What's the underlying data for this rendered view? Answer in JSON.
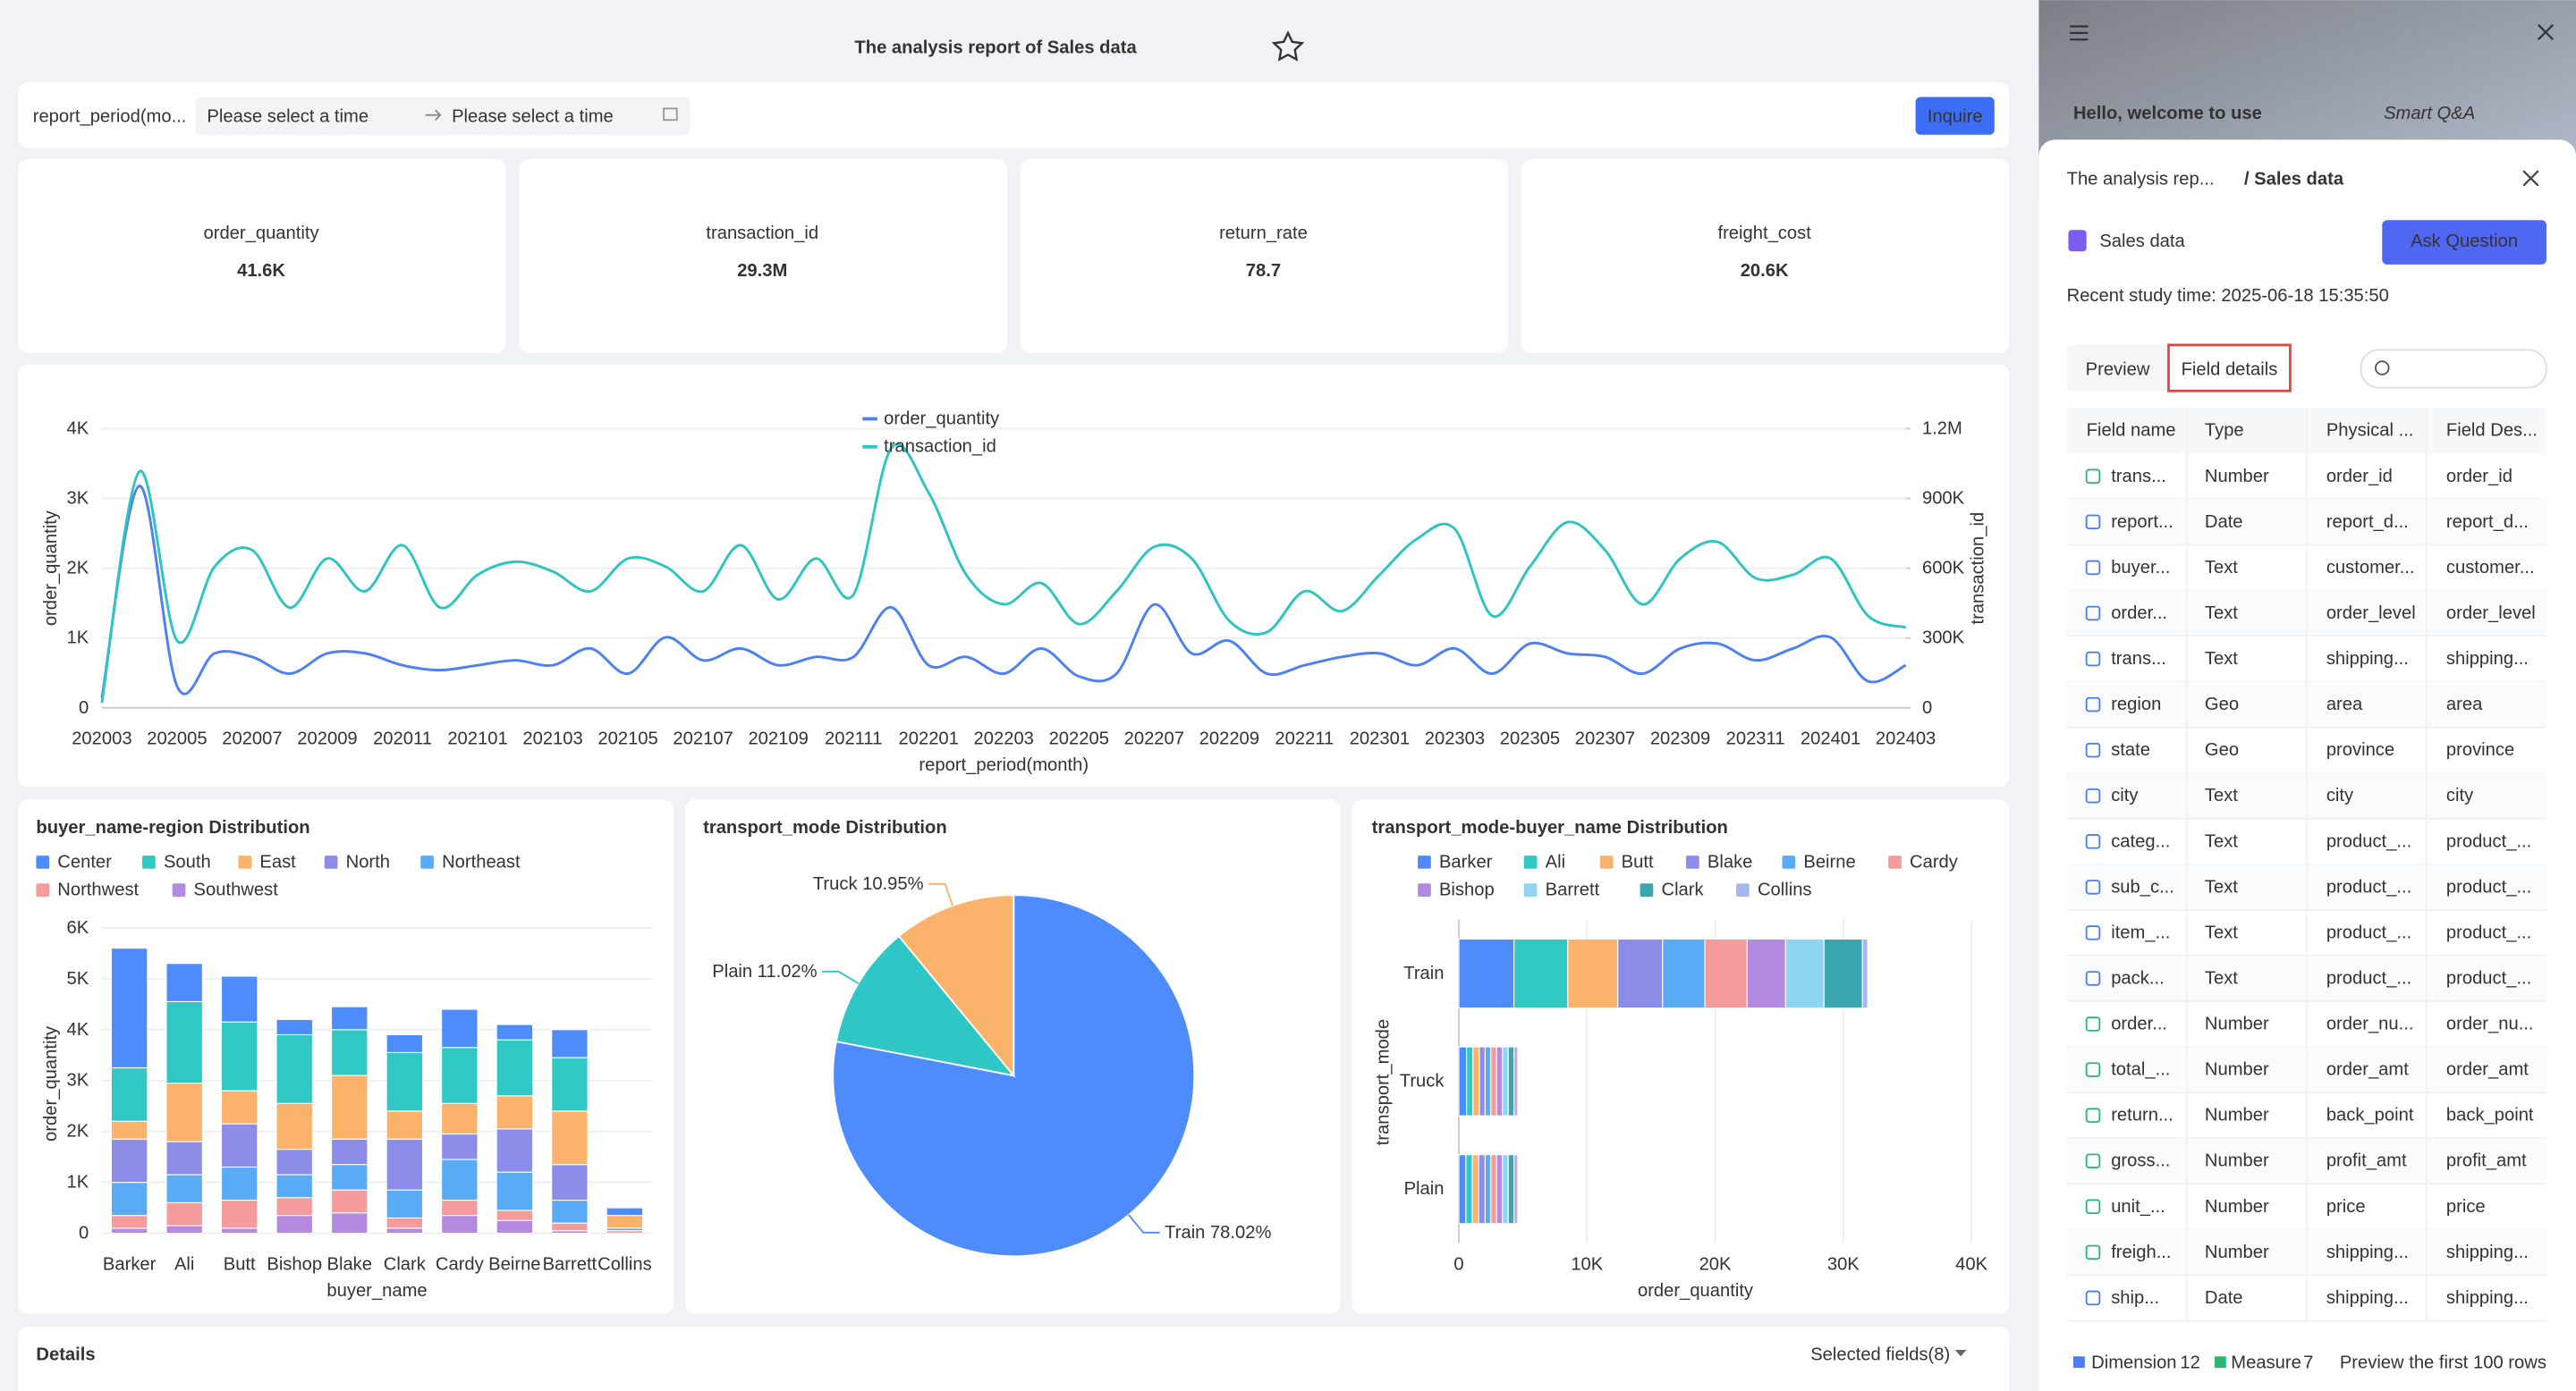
{
  "header": {
    "title": "The analysis report of Sales data"
  },
  "filter": {
    "label": "report_period(mo...",
    "start_placeholder": "Please select a time",
    "end_placeholder": "Please select a time",
    "button": "Inquire"
  },
  "kpis": [
    {
      "label": "order_quantity",
      "value": "41.6K"
    },
    {
      "label": "transaction_id",
      "value": "29.3M"
    },
    {
      "label": "return_rate",
      "value": "78.7"
    },
    {
      "label": "freight_cost",
      "value": "20.6K"
    }
  ],
  "line_chart": {
    "type": "line",
    "x_label": "report_period(month)",
    "y_label": "order_quantity",
    "y2_label": "transaction_id",
    "grid": true,
    "x": [
      "202003",
      null,
      "202005",
      null,
      "202007",
      null,
      "202009",
      null,
      "202011",
      null,
      "202101",
      null,
      "202103",
      null,
      "202105",
      null,
      "202107",
      null,
      "202109",
      null,
      "202111",
      null,
      "202201",
      null,
      "202203",
      null,
      "202205",
      null,
      "202207",
      null,
      "202209",
      null,
      "202211",
      null,
      "202301",
      null,
      "202303",
      null,
      "202305",
      null,
      "202307",
      null,
      "202309",
      null,
      "202311",
      null,
      "202401",
      null,
      "202403"
    ],
    "series": [
      {
        "name": "order_quantity",
        "color": "#4d7ff5",
        "values": [
          140,
          3180,
          310,
          780,
          730,
          490,
          780,
          780,
          610,
          540,
          610,
          680,
          610,
          850,
          490,
          1010,
          680,
          850,
          610,
          730,
          730,
          1440,
          610,
          730,
          490,
          850,
          450,
          490,
          1480,
          780,
          960,
          490,
          610,
          730,
          780,
          610,
          850,
          490,
          920,
          780,
          730,
          490,
          850,
          920,
          680,
          850,
          1010,
          380,
          610
        ]
      },
      {
        "name": "transaction_id",
        "color": "#2ec4bf",
        "axis": "y2",
        "values": [
          21000,
          1016000,
          289000,
          607000,
          678000,
          431000,
          642000,
          501000,
          699000,
          431000,
          572000,
          628000,
          586000,
          501000,
          642000,
          607000,
          501000,
          699000,
          466000,
          642000,
          487000,
          1115000,
          925000,
          572000,
          445000,
          536000,
          360000,
          501000,
          692000,
          642000,
          374000,
          325000,
          501000,
          416000,
          572000,
          727000,
          769000,
          395000,
          607000,
          798000,
          678000,
          445000,
          642000,
          713000,
          558000,
          572000,
          642000,
          395000,
          346000
        ]
      }
    ],
    "ylim": [
      0,
      4000
    ],
    "yticks": [
      0,
      {
        "value": 1000,
        "label": "1K"
      },
      {
        "value": 2000,
        "label": "2K"
      },
      {
        "value": 3000,
        "label": "3K"
      },
      {
        "value": 4000,
        "label": "4K"
      }
    ],
    "y2lim": [
      0,
      1200000
    ],
    "y2ticks": [
      0,
      {
        "value": 300000,
        "label": "300K"
      },
      {
        "value": 600000,
        "label": "600K"
      },
      {
        "value": 900000,
        "label": "900K"
      },
      {
        "value": 1200000,
        "label": "1.2M"
      }
    ]
  },
  "bar_chart": {
    "type": "bar",
    "stacked": true,
    "title": "buyer_name-region Distribution",
    "x_label": "buyer_name",
    "y_label": "order_quantity",
    "grid": true,
    "categories": [
      "Barker",
      "Ali",
      "Butt",
      "Bishop",
      "Blake",
      "Clark",
      "Cardy",
      "Beirne",
      "Barrett",
      "Collins"
    ],
    "series": [
      {
        "name": "Center",
        "color": "#4e8bfd",
        "values": [
          2350,
          750,
          900,
          300,
          450,
          350,
          750,
          300,
          550,
          150
        ]
      },
      {
        "name": "South",
        "color": "#2fc8c3",
        "values": [
          1050,
          1600,
          1350,
          1350,
          900,
          1150,
          1100,
          1100,
          1050,
          0
        ]
      },
      {
        "name": "East",
        "color": "#fbb36b",
        "values": [
          350,
          1150,
          650,
          900,
          1250,
          550,
          600,
          650,
          1050,
          250
        ]
      },
      {
        "name": "North",
        "color": "#8b8de8",
        "values": [
          850,
          650,
          850,
          500,
          500,
          1000,
          500,
          850,
          700,
          0
        ]
      },
      {
        "name": "Northeast",
        "color": "#5aabf5",
        "values": [
          650,
          550,
          650,
          450,
          500,
          550,
          800,
          750,
          450,
          50
        ]
      },
      {
        "name": "Northwest",
        "color": "#f59b9b",
        "values": [
          250,
          450,
          550,
          350,
          450,
          200,
          300,
          200,
          150,
          50
        ]
      },
      {
        "name": "Southwest",
        "color": "#b48ae0",
        "values": [
          100,
          150,
          100,
          350,
          400,
          100,
          350,
          250,
          50,
          0
        ]
      }
    ],
    "ylim": [
      0,
      6000
    ],
    "yticks": [
      0,
      {
        "value": 1000,
        "label": "1K"
      },
      {
        "value": 2000,
        "label": "2K"
      },
      {
        "value": 3000,
        "label": "3K"
      },
      {
        "value": 4000,
        "label": "4K"
      },
      {
        "value": 5000,
        "label": "5K"
      },
      {
        "value": 6000,
        "label": "6K"
      }
    ]
  },
  "pie_chart": {
    "type": "pie",
    "title": "transport_mode Distribution",
    "categories": [
      "Train",
      "Plain",
      "Truck"
    ],
    "values": [
      78.02,
      11.02,
      10.95
    ],
    "value_labels": [
      "78.02%",
      "11.02%",
      "10.95%"
    ],
    "colors": [
      "#4e8bfd",
      "#2ec7c5",
      "#fbb36b"
    ]
  },
  "hbar_chart": {
    "type": "hbar",
    "stacked": true,
    "title": "transport_mode-buyer_name Distribution",
    "x_label": "order_quantity",
    "y_label": "transport_mode",
    "grid": true,
    "categories": [
      "Train",
      "Truck",
      "Plain"
    ],
    "series": [
      {
        "name": "Barker",
        "color": "#4e8bfd",
        "values": [
          4300,
          600,
          550
        ]
      },
      {
        "name": "Ali",
        "color": "#2fc8c3",
        "values": [
          4200,
          500,
          500
        ]
      },
      {
        "name": "Butt",
        "color": "#fbb36b",
        "values": [
          3900,
          500,
          500
        ]
      },
      {
        "name": "Blake",
        "color": "#8b8de8",
        "values": [
          3500,
          450,
          500
        ]
      },
      {
        "name": "Beirne",
        "color": "#5aabf5",
        "values": [
          3300,
          450,
          450
        ]
      },
      {
        "name": "Cardy",
        "color": "#f59b9b",
        "values": [
          3300,
          450,
          450
        ]
      },
      {
        "name": "Bishop",
        "color": "#b48ae0",
        "values": [
          3000,
          450,
          450
        ]
      },
      {
        "name": "Barrett",
        "color": "#8fd4f3",
        "values": [
          3000,
          450,
          450
        ]
      },
      {
        "name": "Clark",
        "color": "#3aa6b0",
        "values": [
          3000,
          450,
          450
        ]
      },
      {
        "name": "Collins",
        "color": "#a7b5f2",
        "values": [
          400,
          300,
          300
        ]
      }
    ],
    "xlim": [
      0,
      40000
    ],
    "xticks": [
      0,
      {
        "value": 10000,
        "label": "10K"
      },
      {
        "value": 20000,
        "label": "20K"
      },
      {
        "value": 30000,
        "label": "30K"
      },
      {
        "value": 40000,
        "label": "40K"
      }
    ]
  },
  "details": {
    "title": "Details",
    "selected": "Selected fields(8)"
  },
  "panel": {
    "greeting": "Hello, welcome to use",
    "brand": "Smart Q&A",
    "breadcrumb": "The analysis rep...",
    "breadcrumb_current": "/ Sales data",
    "dataset": "Sales data",
    "ask_button": "Ask Question",
    "study_time": "Recent study time: 2025-06-18 15:35:50",
    "tabs": [
      "Preview",
      "Field details"
    ],
    "table": {
      "columns": [
        "Field name",
        "Type",
        "Physical ...",
        "Field Des..."
      ],
      "rows": [
        [
          "trans...",
          "Number",
          "order_id",
          "order_id"
        ],
        [
          "report...",
          "Date",
          "report_d...",
          "report_d..."
        ],
        [
          "buyer...",
          "Text",
          "customer...",
          "customer..."
        ],
        [
          "order...",
          "Text",
          "order_level",
          "order_level"
        ],
        [
          "trans...",
          "Text",
          "shipping...",
          "shipping..."
        ],
        [
          "region",
          "Geo",
          "area",
          "area"
        ],
        [
          "state",
          "Geo",
          "province",
          "province"
        ],
        [
          "city",
          "Text",
          "city",
          "city"
        ],
        [
          "categ...",
          "Text",
          "product_...",
          "product_..."
        ],
        [
          "sub_c...",
          "Text",
          "product_...",
          "product_..."
        ],
        [
          "item_...",
          "Text",
          "product_...",
          "product_..."
        ],
        [
          "pack...",
          "Text",
          "product_...",
          "product_..."
        ],
        [
          "order...",
          "Number",
          "order_nu...",
          "order_nu..."
        ],
        [
          "total_...",
          "Number",
          "order_amt",
          "order_amt"
        ],
        [
          "return...",
          "Number",
          "back_point",
          "back_point"
        ],
        [
          "gross...",
          "Number",
          "profit_amt",
          "profit_amt"
        ],
        [
          "unit_...",
          "Number",
          "price",
          "price"
        ],
        [
          "freigh...",
          "Number",
          "shipping...",
          "shipping..."
        ],
        [
          "ship...",
          "Date",
          "shipping...",
          "shipping..."
        ]
      ]
    },
    "footer": {
      "dimension_label": "Dimension",
      "dimension_count": 12,
      "measure_label": "Measure",
      "measure_count": 7,
      "note": "Preview the first 100 rows"
    }
  }
}
